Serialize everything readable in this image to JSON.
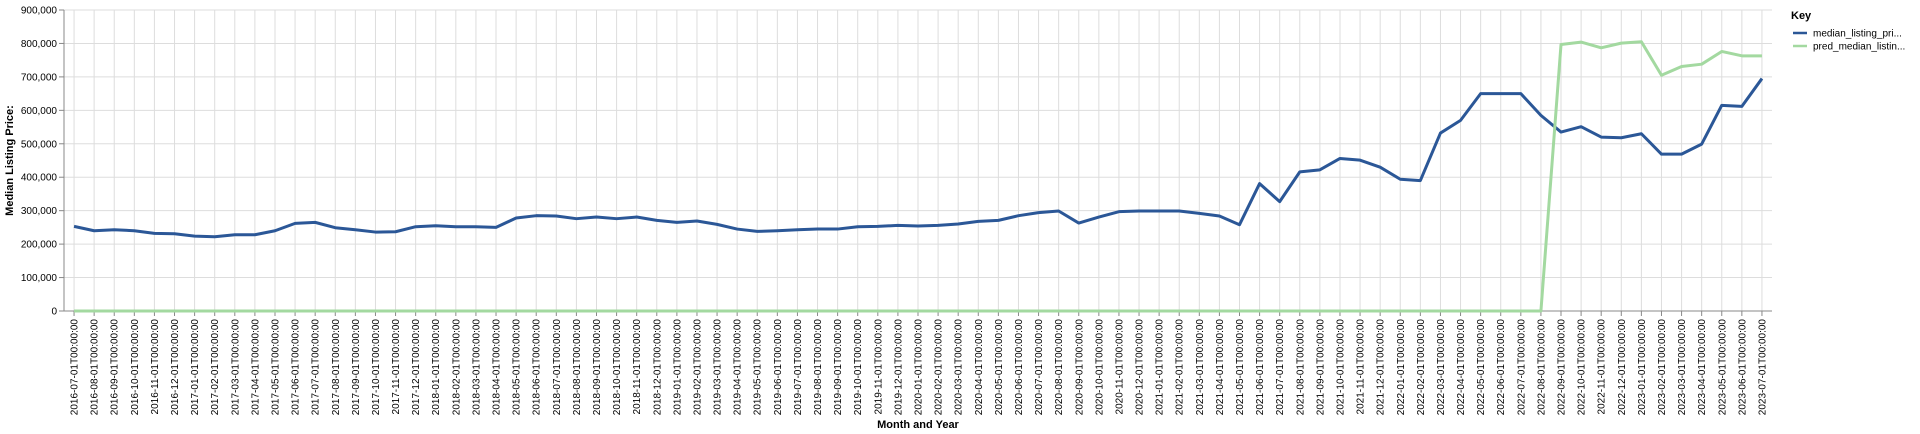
{
  "chart_data": {
    "type": "line",
    "xlabel": "Month and Year",
    "ylabel": "Median Listing Price:",
    "ylim": [
      0,
      900000
    ],
    "y_ticks": [
      "0",
      "100,000",
      "200,000",
      "300,000",
      "400,000",
      "500,000",
      "600,000",
      "700,000",
      "800,000",
      "900,000"
    ],
    "y_tick_values": [
      0,
      100000,
      200000,
      300000,
      400000,
      500000,
      600000,
      700000,
      800000,
      900000
    ],
    "grid": true,
    "legend": {
      "title": "Key",
      "placement": "top-right"
    },
    "x": [
      "2016-07-01T00:00:00",
      "2016-08-01T00:00:00",
      "2016-09-01T00:00:00",
      "2016-10-01T00:00:00",
      "2016-11-01T00:00:00",
      "2016-12-01T00:00:00",
      "2017-01-01T00:00:00",
      "2017-02-01T00:00:00",
      "2017-03-01T00:00:00",
      "2017-04-01T00:00:00",
      "2017-05-01T00:00:00",
      "2017-06-01T00:00:00",
      "2017-07-01T00:00:00",
      "2017-08-01T00:00:00",
      "2017-09-01T00:00:00",
      "2017-10-01T00:00:00",
      "2017-11-01T00:00:00",
      "2017-12-01T00:00:00",
      "2018-01-01T00:00:00",
      "2018-02-01T00:00:00",
      "2018-03-01T00:00:00",
      "2018-04-01T00:00:00",
      "2018-05-01T00:00:00",
      "2018-06-01T00:00:00",
      "2018-07-01T00:00:00",
      "2018-08-01T00:00:00",
      "2018-09-01T00:00:00",
      "2018-10-01T00:00:00",
      "2018-11-01T00:00:00",
      "2018-12-01T00:00:00",
      "2019-01-01T00:00:00",
      "2019-02-01T00:00:00",
      "2019-03-01T00:00:00",
      "2019-04-01T00:00:00",
      "2019-05-01T00:00:00",
      "2019-06-01T00:00:00",
      "2019-07-01T00:00:00",
      "2019-08-01T00:00:00",
      "2019-09-01T00:00:00",
      "2019-10-01T00:00:00",
      "2019-11-01T00:00:00",
      "2019-12-01T00:00:00",
      "2020-01-01T00:00:00",
      "2020-02-01T00:00:00",
      "2020-03-01T00:00:00",
      "2020-04-01T00:00:00",
      "2020-05-01T00:00:00",
      "2020-06-01T00:00:00",
      "2020-07-01T00:00:00",
      "2020-08-01T00:00:00",
      "2020-09-01T00:00:00",
      "2020-10-01T00:00:00",
      "2020-11-01T00:00:00",
      "2020-12-01T00:00:00",
      "2021-01-01T00:00:00",
      "2021-02-01T00:00:00",
      "2021-03-01T00:00:00",
      "2021-04-01T00:00:00",
      "2021-05-01T00:00:00",
      "2021-06-01T00:00:00",
      "2021-07-01T00:00:00",
      "2021-08-01T00:00:00",
      "2021-09-01T00:00:00",
      "2021-10-01T00:00:00",
      "2021-11-01T00:00:00",
      "2021-12-01T00:00:00",
      "2022-01-01T00:00:00",
      "2022-02-01T00:00:00",
      "2022-03-01T00:00:00",
      "2022-04-01T00:00:00",
      "2022-05-01T00:00:00",
      "2022-06-01T00:00:00",
      "2022-07-01T00:00:00",
      "2022-08-01T00:00:00",
      "2022-09-01T00:00:00",
      "2022-10-01T00:00:00",
      "2022-11-01T00:00:00",
      "2022-12-01T00:00:00",
      "2023-01-01T00:00:00",
      "2023-02-01T00:00:00",
      "2023-03-01T00:00:00",
      "2023-04-01T00:00:00",
      "2023-05-01T00:00:00",
      "2023-06-01T00:00:00",
      "2023-07-01T00:00:00"
    ],
    "series": [
      {
        "name": "median_listing_pri...",
        "color": "#2b5797",
        "values": [
          253000,
          240000,
          243000,
          240000,
          232000,
          231000,
          224000,
          222000,
          228000,
          228000,
          240000,
          262000,
          265000,
          249000,
          243000,
          236000,
          237000,
          252000,
          255000,
          252000,
          252000,
          250000,
          278000,
          285000,
          284000,
          276000,
          281000,
          276000,
          281000,
          271000,
          265000,
          269000,
          259000,
          245000,
          238000,
          240000,
          243000,
          245000,
          245000,
          252000,
          253000,
          256000,
          254000,
          256000,
          260000,
          268000,
          271000,
          285000,
          294000,
          299000,
          263000,
          281000,
          297000,
          299000,
          299000,
          299000,
          292000,
          284000,
          258000,
          381000,
          327000,
          416000,
          422000,
          456000,
          451000,
          430000,
          394000,
          390000,
          532000,
          570000,
          650000,
          650000,
          650000,
          585000,
          535000,
          551000,
          520000,
          518000,
          530000,
          469000,
          469000,
          499000,
          615000,
          612000,
          695000
        ]
      },
      {
        "name": "pred_median_listin...",
        "color": "#a3d9a0",
        "values": [
          0,
          0,
          0,
          0,
          0,
          0,
          0,
          0,
          0,
          0,
          0,
          0,
          0,
          0,
          0,
          0,
          0,
          0,
          0,
          0,
          0,
          0,
          0,
          0,
          0,
          0,
          0,
          0,
          0,
          0,
          0,
          0,
          0,
          0,
          0,
          0,
          0,
          0,
          0,
          0,
          0,
          0,
          0,
          0,
          0,
          0,
          0,
          0,
          0,
          0,
          0,
          0,
          0,
          0,
          0,
          0,
          0,
          0,
          0,
          0,
          0,
          0,
          0,
          0,
          0,
          0,
          0,
          0,
          0,
          0,
          0,
          0,
          0,
          0,
          797000,
          804000,
          787000,
          801000,
          805000,
          705000,
          731000,
          738000,
          776000,
          763000,
          763000
        ]
      }
    ]
  }
}
